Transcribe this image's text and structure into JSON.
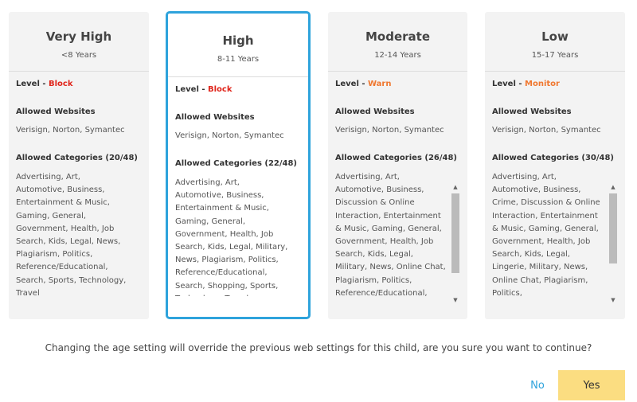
{
  "cards": [
    {
      "title": "Very High",
      "range": "<8 Years",
      "level_label": "Level - ",
      "level": "Block",
      "level_color": "#e0251b",
      "websites_label": "Allowed Websites",
      "websites": "Verisign, Norton, Symantec",
      "categories_label": "Allowed Categories (20/48)",
      "categories": "Advertising, Art, Automotive, Business, Entertainment & Music, Gaming, General, Government, Health, Job Search, Kids, Legal, News, Plagiarism, Politics, Reference/Educational, Search, Sports, Technology, Travel",
      "selected": false
    },
    {
      "title": "High",
      "range": "8-11 Years",
      "level_label": "Level - ",
      "level": "Block",
      "level_color": "#e0251b",
      "websites_label": "Allowed Websites",
      "websites": "Verisign, Norton, Symantec",
      "categories_label": "Allowed Categories (22/48)",
      "categories": "Advertising, Art, Automotive, Business, Entertainment & Music, Gaming, General, Government, Health, Job Search, Kids, Legal, Military, News, Plagiarism, Politics, Reference/Educational, Search, Shopping, Sports, Technology, Travel",
      "selected": true
    },
    {
      "title": "Moderate",
      "range": "12-14 Years",
      "level_label": "Level - ",
      "level": "Warn",
      "level_color": "#f07830",
      "websites_label": "Allowed Websites",
      "websites": "Verisign, Norton, Symantec",
      "categories_label": "Allowed Categories (26/48)",
      "categories": "Advertising, Art, Automotive, Business, Discussion & Online Interaction, Entertainment & Music, Gaming, General, Government, Health, Job Search, Kids, Legal, Military, News, Online Chat, Plagiarism, Politics, Reference/Educational,",
      "selected": false
    },
    {
      "title": "Low",
      "range": "15-17 Years",
      "level_label": "Level - ",
      "level": "Monitor",
      "level_color": "#f07830",
      "websites_label": "Allowed Websites",
      "websites": "Verisign, Norton, Symantec",
      "categories_label": "Allowed Categories (30/48)",
      "categories": "Advertising, Art, Automotive, Business, Crime, Discussion & Online Interaction, Entertainment & Music, Gaming, General, Government, Health, Job Search, Kids, Legal, Lingerie, Military, News, Online Chat, Plagiarism, Politics, Reference/Educational,",
      "selected": false
    }
  ],
  "message": "Changing the age setting will override the previous web settings for this child, are you sure you want to continue?",
  "no_label": "No",
  "yes_label": "Yes"
}
